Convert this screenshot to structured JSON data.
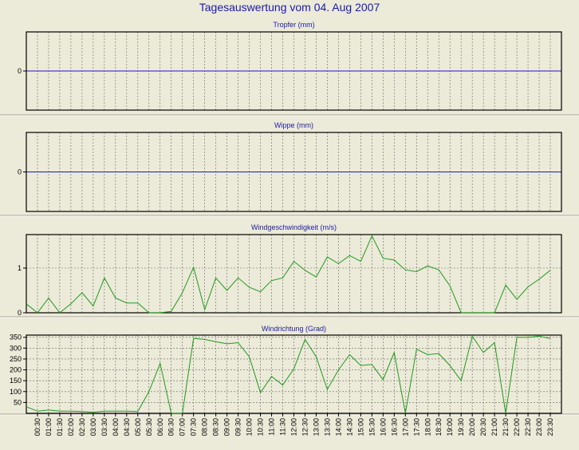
{
  "title": "Tagesauswertung vom 04. Aug 2007",
  "x_tick_labels": [
    "00:30",
    "01:00",
    "01:30",
    "02:00",
    "02:30",
    "03:00",
    "03:30",
    "04:00",
    "04:30",
    "05:00",
    "05:30",
    "06:00",
    "06:30",
    "07:00",
    "07:30",
    "08:00",
    "08:30",
    "09:00",
    "09:30",
    "10:00",
    "10:30",
    "11:00",
    "11:30",
    "12:00",
    "12:30",
    "13:00",
    "13:30",
    "14:00",
    "14:30",
    "15:00",
    "15:30",
    "16:00",
    "16:30",
    "17:00",
    "17:30",
    "18:00",
    "18:30",
    "19:00",
    "19:30",
    "20:00",
    "20:30",
    "21:00",
    "21:30",
    "22:00",
    "22:30",
    "23:00",
    "23:30"
  ],
  "colors": {
    "title": "#1a1aa6",
    "zero_line": "#1a1acc",
    "series": "#1f9a1f",
    "background": "#ecead8",
    "plot_bg": "#ecead8"
  },
  "chart_data": [
    {
      "type": "line",
      "title": "Tropfer (mm)",
      "ylim": [
        -1,
        1
      ],
      "yticks": [
        0
      ],
      "ytick_labels": [
        "0"
      ],
      "series": []
    },
    {
      "type": "line",
      "title": "Wippe (mm)",
      "ylim": [
        -1,
        1
      ],
      "yticks": [
        0
      ],
      "ytick_labels": [
        "0"
      ],
      "series": []
    },
    {
      "type": "line",
      "title": "Windgeschwindigkeit (m/s)",
      "ylim": [
        0,
        1.75
      ],
      "yticks": [
        0,
        1
      ],
      "ytick_labels": [
        "0",
        "1"
      ],
      "series": [
        {
          "values": [
            0.2,
            0.0,
            0.33,
            0.0,
            0.2,
            0.45,
            0.15,
            0.78,
            0.33,
            0.22,
            0.22,
            0.0,
            0.0,
            0.03,
            0.45,
            1.02,
            0.07,
            0.78,
            0.5,
            0.78,
            0.57,
            0.47,
            0.72,
            0.78,
            1.15,
            0.95,
            0.8,
            1.25,
            1.1,
            1.28,
            1.15,
            1.72,
            1.22,
            1.18,
            0.96,
            0.92,
            1.05,
            0.96,
            0.6,
            0.0,
            0.0,
            0.0,
            0.0,
            0.62,
            0.3,
            0.58,
            0.75,
            0.95
          ]
        }
      ]
    },
    {
      "type": "line",
      "title": "Windrichtung (Grad)",
      "ylim": [
        0,
        360
      ],
      "yticks": [
        50,
        100,
        150,
        200,
        250,
        300,
        350
      ],
      "ytick_labels": [
        "50",
        "100",
        "150",
        "200",
        "250",
        "300",
        "350"
      ],
      "series": [
        {
          "values": [
            30,
            10,
            15,
            10,
            10,
            8,
            5,
            10,
            10,
            10,
            8,
            100,
            230,
            0,
            0,
            345,
            340,
            330,
            320,
            325,
            260,
            95,
            170,
            130,
            205,
            340,
            260,
            110,
            200,
            270,
            220,
            225,
            155,
            280,
            0,
            295,
            270,
            275,
            220,
            150,
            355,
            280,
            325,
            0,
            350,
            350,
            355,
            345
          ]
        }
      ]
    }
  ]
}
